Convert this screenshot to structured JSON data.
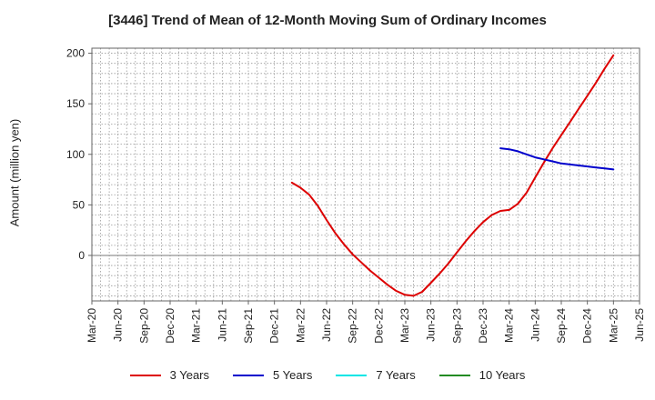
{
  "chart_data": {
    "type": "line",
    "title": "[3446]  Trend of Mean of 12-Month Moving Sum of Ordinary Incomes",
    "ylabel": "Amount (million yen)",
    "xlabel": "",
    "x_ticks": [
      "Mar-20",
      "Jun-20",
      "Sep-20",
      "Dec-20",
      "Mar-21",
      "Jun-21",
      "Sep-21",
      "Dec-21",
      "Mar-22",
      "Jun-22",
      "Sep-22",
      "Dec-22",
      "Mar-23",
      "Jun-23",
      "Sep-23",
      "Dec-23",
      "Mar-24",
      "Jun-24",
      "Sep-24",
      "Dec-24",
      "Mar-25",
      "Jun-25"
    ],
    "y_ticks": [
      0,
      50,
      100,
      150,
      200
    ],
    "ylim": [
      -45,
      205
    ],
    "grid": true,
    "legend_position": "bottom",
    "series": [
      {
        "name": "3 Years",
        "color": "#dd0000",
        "points": [
          [
            "Feb-22",
            72
          ],
          [
            "Mar-22",
            67
          ],
          [
            "Apr-22",
            60
          ],
          [
            "May-22",
            49
          ],
          [
            "Jun-22",
            35
          ],
          [
            "Jul-22",
            22
          ],
          [
            "Aug-22",
            11
          ],
          [
            "Sep-22",
            1
          ],
          [
            "Oct-22",
            -7
          ],
          [
            "Nov-22",
            -15
          ],
          [
            "Dec-22",
            -22
          ],
          [
            "Jan-23",
            -29
          ],
          [
            "Feb-23",
            -35
          ],
          [
            "Mar-23",
            -39
          ],
          [
            "Apr-23",
            -40
          ],
          [
            "May-23",
            -36
          ],
          [
            "Jun-23",
            -27
          ],
          [
            "Jul-23",
            -18
          ],
          [
            "Aug-23",
            -8
          ],
          [
            "Sep-23",
            3
          ],
          [
            "Oct-23",
            14
          ],
          [
            "Nov-23",
            24
          ],
          [
            "Dec-23",
            33
          ],
          [
            "Jan-24",
            40
          ],
          [
            "Feb-24",
            44
          ],
          [
            "Mar-24",
            45
          ],
          [
            "Apr-24",
            51
          ],
          [
            "May-24",
            62
          ],
          [
            "Jun-24",
            77
          ],
          [
            "Jul-24",
            92
          ],
          [
            "Aug-24",
            106
          ],
          [
            "Sep-24",
            119
          ],
          [
            "Oct-24",
            132
          ],
          [
            "Nov-24",
            145
          ],
          [
            "Dec-24",
            158
          ],
          [
            "Jan-25",
            171
          ],
          [
            "Feb-25",
            185
          ],
          [
            "Mar-25",
            198
          ]
        ]
      },
      {
        "name": "5 Years",
        "color": "#0000cc",
        "points": [
          [
            "Feb-24",
            106
          ],
          [
            "Mar-24",
            105
          ],
          [
            "Apr-24",
            103
          ],
          [
            "May-24",
            100
          ],
          [
            "Jun-24",
            97
          ],
          [
            "Jul-24",
            95
          ],
          [
            "Aug-24",
            93
          ],
          [
            "Sep-24",
            91
          ],
          [
            "Oct-24",
            90
          ],
          [
            "Nov-24",
            89
          ],
          [
            "Dec-24",
            88
          ],
          [
            "Jan-25",
            87
          ],
          [
            "Feb-25",
            86
          ],
          [
            "Mar-25",
            85
          ]
        ]
      },
      {
        "name": "7 Years",
        "color": "#00e5e5",
        "points": []
      },
      {
        "name": "10 Years",
        "color": "#228b22",
        "points": []
      }
    ]
  }
}
